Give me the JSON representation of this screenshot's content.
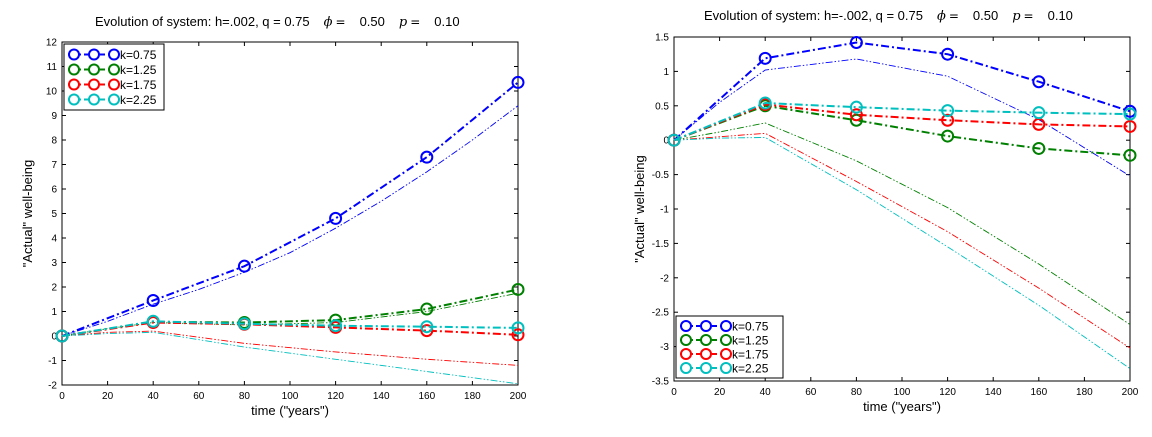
{
  "chart_data": [
    {
      "type": "line",
      "title": "Evolution of system: h=.002, q =   0.75",
      "title_params": [
        {
          "symbol": "ϕ",
          "eq": "=",
          "value": "0.50"
        },
        {
          "symbol": "p",
          "eq": "=",
          "value": "0.10"
        }
      ],
      "xlabel": "time (\"years\")",
      "ylabel": "\"Actual\" well-being",
      "xlim": [
        0,
        200
      ],
      "ylim": [
        -2,
        12
      ],
      "xticks": [
        0,
        20,
        40,
        60,
        80,
        100,
        120,
        140,
        160,
        180,
        200
      ],
      "yticks": [
        -2,
        -1,
        0,
        1,
        2,
        3,
        4,
        5,
        6,
        7,
        8,
        9,
        10,
        11,
        12
      ],
      "grid": false,
      "legend_position": "top-left",
      "x": [
        0,
        40,
        80,
        120,
        160,
        200
      ],
      "series": [
        {
          "name": "k=0.75",
          "color": "#0000ff",
          "values": [
            0,
            1.45,
            2.85,
            4.8,
            7.3,
            10.35
          ],
          "thin": [
            [
              0,
              0
            ],
            [
              20,
              0.6
            ],
            [
              40,
              1.3
            ],
            [
              60,
              1.9
            ],
            [
              80,
              2.6
            ],
            [
              100,
              3.4
            ],
            [
              120,
              4.4
            ],
            [
              140,
              5.5
            ],
            [
              160,
              6.7
            ],
            [
              180,
              8.0
            ],
            [
              200,
              9.4
            ]
          ]
        },
        {
          "name": "k=1.25",
          "color": "#008000",
          "values": [
            0,
            0.58,
            0.55,
            0.65,
            1.1,
            1.9
          ],
          "thin": [
            [
              0,
              0
            ],
            [
              20,
              0.3
            ],
            [
              40,
              0.55
            ],
            [
              80,
              0.45
            ],
            [
              120,
              0.55
            ],
            [
              160,
              1.0
            ],
            [
              200,
              1.75
            ]
          ]
        },
        {
          "name": "k=1.75",
          "color": "#ff0000",
          "values": [
            0,
            0.55,
            0.48,
            0.35,
            0.22,
            0.05
          ],
          "thin": [
            [
              0,
              0
            ],
            [
              20,
              0.15
            ],
            [
              40,
              0.2
            ],
            [
              80,
              -0.3
            ],
            [
              120,
              -0.65
            ],
            [
              160,
              -0.95
            ],
            [
              200,
              -1.2
            ]
          ]
        },
        {
          "name": "k=2.25",
          "color": "#00bfbf",
          "values": [
            0,
            0.6,
            0.5,
            0.42,
            0.38,
            0.33
          ],
          "thin": [
            [
              0,
              0
            ],
            [
              20,
              0.1
            ],
            [
              40,
              0.15
            ],
            [
              80,
              -0.45
            ],
            [
              120,
              -0.95
            ],
            [
              160,
              -1.45
            ],
            [
              200,
              -1.95
            ]
          ]
        }
      ]
    },
    {
      "type": "line",
      "title": "Evolution of system: h=-.002, q =   0.75",
      "title_params": [
        {
          "symbol": "ϕ",
          "eq": "=",
          "value": "0.50"
        },
        {
          "symbol": "p",
          "eq": "=",
          "value": "0.10"
        }
      ],
      "xlabel": "time (\"years\")",
      "ylabel": "\"Actual\" well-being",
      "xlim": [
        0,
        200
      ],
      "ylim": [
        -3.5,
        1.5
      ],
      "xticks": [
        0,
        20,
        40,
        60,
        80,
        100,
        120,
        140,
        160,
        180,
        200
      ],
      "yticks": [
        -3.5,
        -3,
        -2.5,
        -2,
        -1.5,
        -1,
        -0.5,
        0,
        0.5,
        1,
        1.5
      ],
      "grid": false,
      "legend_position": "bottom-left",
      "x": [
        0,
        40,
        80,
        120,
        160,
        200
      ],
      "series": [
        {
          "name": "k=0.75",
          "color": "#0000ff",
          "values": [
            0,
            1.19,
            1.42,
            1.25,
            0.85,
            0.42
          ],
          "thin": [
            [
              0,
              0
            ],
            [
              20,
              0.55
            ],
            [
              40,
              1.02
            ],
            [
              80,
              1.18
            ],
            [
              120,
              0.93
            ],
            [
              160,
              0.3
            ],
            [
              200,
              -0.52
            ]
          ]
        },
        {
          "name": "k=1.25",
          "color": "#008000",
          "values": [
            0,
            0.5,
            0.29,
            0.06,
            -0.12,
            -0.22
          ],
          "thin": [
            [
              0,
              0
            ],
            [
              20,
              0.12
            ],
            [
              40,
              0.25
            ],
            [
              80,
              -0.3
            ],
            [
              120,
              -0.98
            ],
            [
              160,
              -1.8
            ],
            [
              200,
              -2.68
            ]
          ]
        },
        {
          "name": "k=1.75",
          "color": "#ff0000",
          "values": [
            0,
            0.52,
            0.37,
            0.29,
            0.23,
            0.2
          ],
          "thin": [
            [
              0,
              0
            ],
            [
              20,
              0.05
            ],
            [
              40,
              0.1
            ],
            [
              80,
              -0.6
            ],
            [
              120,
              -1.33
            ],
            [
              160,
              -2.15
            ],
            [
              200,
              -3.02
            ]
          ]
        },
        {
          "name": "k=2.25",
          "color": "#00bfbf",
          "values": [
            0,
            0.54,
            0.48,
            0.43,
            0.4,
            0.38
          ],
          "thin": [
            [
              0,
              0
            ],
            [
              20,
              0.03
            ],
            [
              40,
              0.04
            ],
            [
              80,
              -0.72
            ],
            [
              120,
              -1.55
            ],
            [
              160,
              -2.4
            ],
            [
              200,
              -3.32
            ]
          ]
        }
      ]
    }
  ]
}
